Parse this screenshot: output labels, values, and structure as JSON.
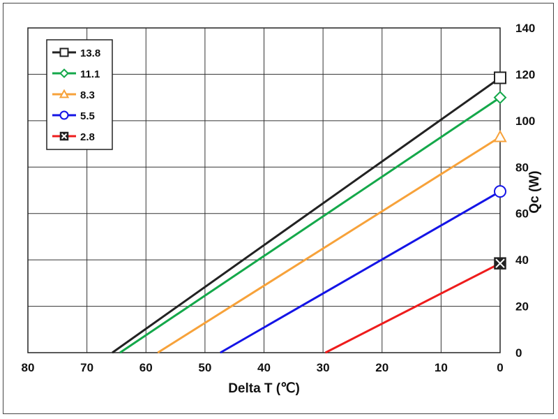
{
  "chart_data": {
    "type": "line",
    "xlabel": "Delta T (℃)",
    "ylabel": "Qc (W)",
    "xlim": [
      80,
      0
    ],
    "ylim": [
      0,
      140
    ],
    "x_ticks": [
      "80",
      "70",
      "60",
      "50",
      "40",
      "30",
      "20",
      "10",
      "0"
    ],
    "y_ticks": [
      "0",
      "20",
      "40",
      "60",
      "80",
      "100",
      "120",
      "140"
    ],
    "grid": true,
    "legend_position": "top-left",
    "series": [
      {
        "name": "13.8",
        "color": "#222222",
        "marker": "square",
        "x": [
          65.7,
          0
        ],
        "y": [
          0,
          118.5
        ]
      },
      {
        "name": "11.1",
        "color": "#14a84a",
        "marker": "diamond",
        "x": [
          64.4,
          0
        ],
        "y": [
          0,
          110
        ]
      },
      {
        "name": "8.3",
        "color": "#f7a23a",
        "marker": "triangle",
        "x": [
          58.0,
          0
        ],
        "y": [
          0,
          93
        ]
      },
      {
        "name": "5.5",
        "color": "#1414e6",
        "marker": "circle",
        "x": [
          47.4,
          0
        ],
        "y": [
          0,
          69.5
        ]
      },
      {
        "name": "2.8",
        "color": "#ee1c1c",
        "marker": "x-square",
        "x": [
          29.6,
          0
        ],
        "y": [
          0,
          38.5
        ]
      }
    ]
  }
}
